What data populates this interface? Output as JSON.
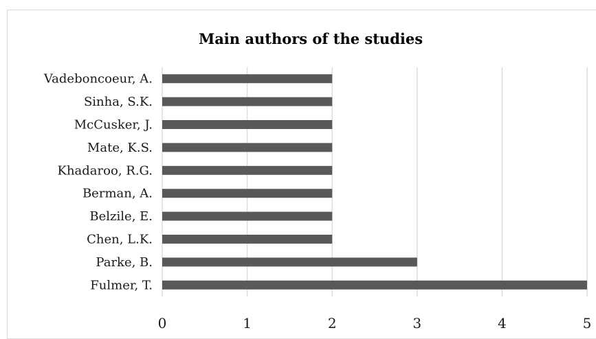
{
  "chart_data": {
    "type": "bar",
    "orientation": "horizontal",
    "title": "Main authors of the studies",
    "xlabel": "",
    "ylabel": "",
    "categories": [
      "Vadeboncoeur, A.",
      "Sinha, S.K.",
      "McCusker, J.",
      "Mate, K.S.",
      "Khadaroo, R.G.",
      "Berman, A.",
      "Belzile, E.",
      "Chen, L.K.",
      "Parke, B.",
      "Fulmer, T."
    ],
    "values": [
      2,
      2,
      2,
      2,
      2,
      2,
      2,
      2,
      3,
      5
    ],
    "xlim": [
      0,
      5
    ],
    "ticks": [
      0,
      1,
      2,
      3,
      4,
      5
    ],
    "grid": "vertical",
    "legend": "none",
    "bar_color": "#595959",
    "grid_color": "#d9d9d9"
  }
}
